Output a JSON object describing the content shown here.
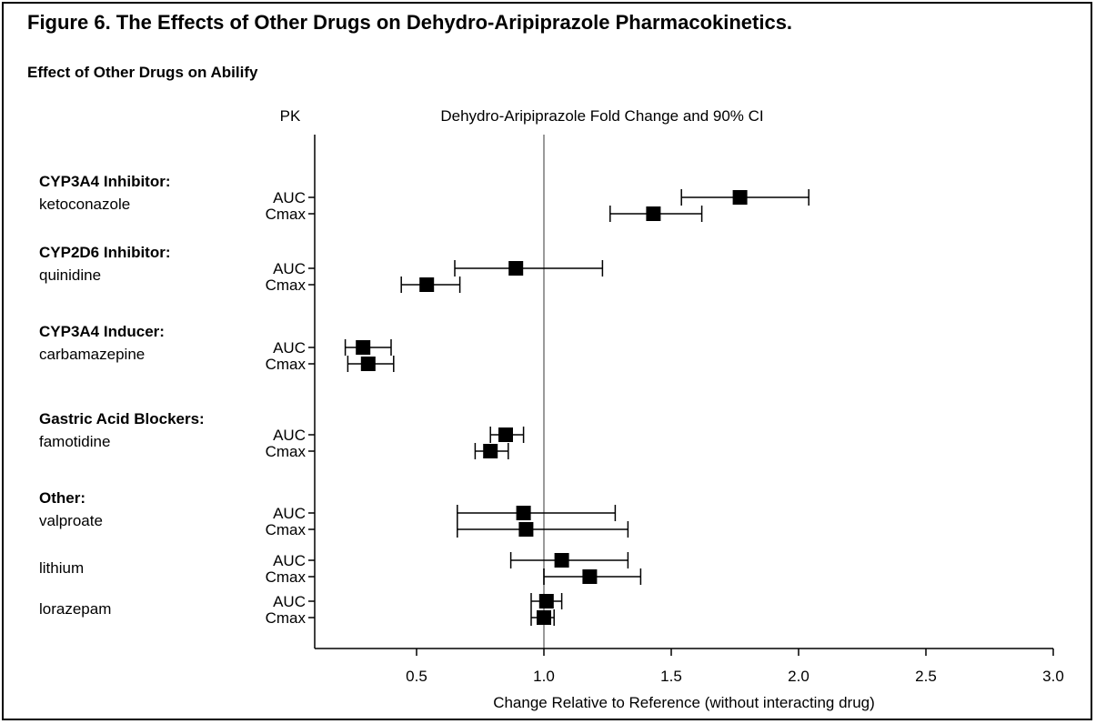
{
  "figure": {
    "title": "Figure 6. The Effects of Other Drugs on Dehydro-Aripiprazole Pharmacokinetics.",
    "subtitle": "Effect of Other Drugs on Abilify"
  },
  "chart_data": {
    "type": "forest",
    "column_headers": {
      "pk": "PK",
      "plot": "Dehydro-Aripiprazole Fold Change and 90% CI"
    },
    "xlabel": "Change Relative to Reference (without interacting drug)",
    "xlim": [
      0.1,
      3.0
    ],
    "xticks": [
      0.5,
      1.0,
      1.5,
      2.0,
      2.5,
      3.0
    ],
    "xtick_labels": [
      "0.5",
      "1.0",
      "1.5",
      "2.0",
      "2.5",
      "3.0"
    ],
    "reference_line": 1.0,
    "colors": {
      "marker": "#000000",
      "reference_line": "#9a9a9a",
      "axis": "#000000"
    },
    "groups": [
      {
        "category": "CYP3A4 Inhibitor:",
        "drugs": [
          {
            "name": "ketoconazole",
            "measures": [
              {
                "pk": "AUC",
                "value": 1.77,
                "ci": [
                  1.54,
                  2.04
                ]
              },
              {
                "pk": "Cmax",
                "value": 1.43,
                "ci": [
                  1.26,
                  1.62
                ]
              }
            ]
          }
        ]
      },
      {
        "category": "CYP2D6 Inhibitor:",
        "drugs": [
          {
            "name": "quinidine",
            "measures": [
              {
                "pk": "AUC",
                "value": 0.89,
                "ci": [
                  0.65,
                  1.23
                ]
              },
              {
                "pk": "Cmax",
                "value": 0.54,
                "ci": [
                  0.44,
                  0.67
                ]
              }
            ]
          }
        ]
      },
      {
        "category": "CYP3A4 Inducer:",
        "drugs": [
          {
            "name": "carbamazepine",
            "measures": [
              {
                "pk": "AUC",
                "value": 0.29,
                "ci": [
                  0.22,
                  0.4
                ]
              },
              {
                "pk": "Cmax",
                "value": 0.31,
                "ci": [
                  0.23,
                  0.41
                ]
              }
            ]
          }
        ]
      },
      {
        "category": "Gastric Acid Blockers:",
        "drugs": [
          {
            "name": "famotidine",
            "measures": [
              {
                "pk": "AUC",
                "value": 0.85,
                "ci": [
                  0.79,
                  0.92
                ]
              },
              {
                "pk": "Cmax",
                "value": 0.79,
                "ci": [
                  0.73,
                  0.86
                ]
              }
            ]
          }
        ]
      },
      {
        "category": "Other:",
        "drugs": [
          {
            "name": "valproate",
            "measures": [
              {
                "pk": "AUC",
                "value": 0.92,
                "ci": [
                  0.66,
                  1.28
                ]
              },
              {
                "pk": "Cmax",
                "value": 0.93,
                "ci": [
                  0.66,
                  1.33
                ]
              }
            ]
          },
          {
            "name": "lithium",
            "measures": [
              {
                "pk": "AUC",
                "value": 1.07,
                "ci": [
                  0.87,
                  1.33
                ]
              },
              {
                "pk": "Cmax",
                "value": 1.18,
                "ci": [
                  1.0,
                  1.38
                ]
              }
            ]
          },
          {
            "name": "lorazepam",
            "measures": [
              {
                "pk": "AUC",
                "value": 1.01,
                "ci": [
                  0.95,
                  1.07
                ]
              },
              {
                "pk": "Cmax",
                "value": 1.0,
                "ci": [
                  0.95,
                  1.04
                ]
              }
            ]
          }
        ]
      }
    ]
  }
}
